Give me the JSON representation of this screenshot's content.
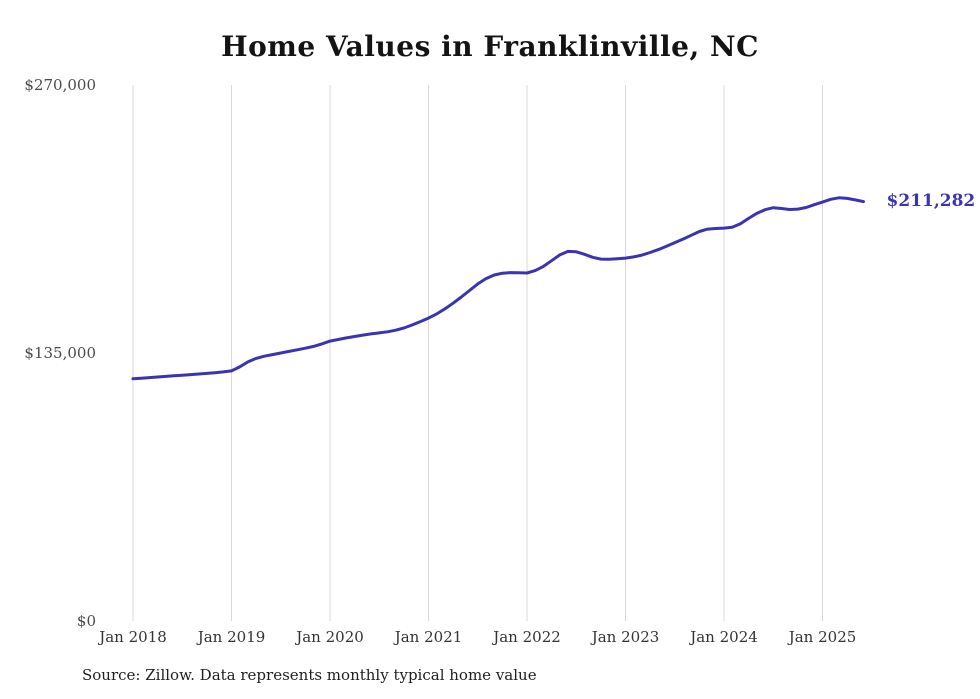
{
  "chart_data": {
    "type": "line",
    "title": "Home Values in Franklinville, NC",
    "series_name": "Monthly typical home value",
    "x_monthly_start": "Jan 2018",
    "x_monthly_end": "Jun 2025",
    "x_tick_labels": [
      "Jan 2018",
      "Jan 2019",
      "Jan 2020",
      "Jan 2021",
      "Jan 2022",
      "Jan 2023",
      "Jan 2024",
      "Jan 2025"
    ],
    "y_tick_labels": [
      "$0",
      "$135,000",
      "$270,000"
    ],
    "y_ticks": [
      0,
      135000,
      270000
    ],
    "ylim": [
      0,
      270000
    ],
    "grid": "vertical-only",
    "legend": "none",
    "line_color": "#3a34b2",
    "grid_color": "#d8d8d8",
    "end_label": "$211,282",
    "latest_value": 211282,
    "source_note": "Source: Zillow. Data represents monthly typical home value",
    "values": [
      122000,
      122300,
      122600,
      122900,
      123200,
      123500,
      123800,
      124100,
      124400,
      124700,
      125100,
      125500,
      126000,
      128000,
      130500,
      132300,
      133400,
      134200,
      135000,
      135800,
      136600,
      137400,
      138300,
      139600,
      141000,
      141800,
      142600,
      143300,
      144000,
      144600,
      145100,
      145700,
      146500,
      147600,
      149100,
      150800,
      152600,
      154700,
      157200,
      160100,
      163200,
      166500,
      169800,
      172500,
      174300,
      175200,
      175500,
      175400,
      175300,
      176500,
      178600,
      181500,
      184400,
      186200,
      186000,
      184700,
      183200,
      182300,
      182200,
      182500,
      182800,
      183400,
      184300,
      185600,
      187100,
      188800,
      190600,
      192400,
      194300,
      196200,
      197400,
      197700,
      197900,
      198300,
      200100,
      202800,
      205300,
      207200,
      208200,
      207800,
      207300,
      207500,
      208300,
      209700,
      211000,
      212400,
      213200,
      212900,
      212100,
      211282
    ]
  }
}
